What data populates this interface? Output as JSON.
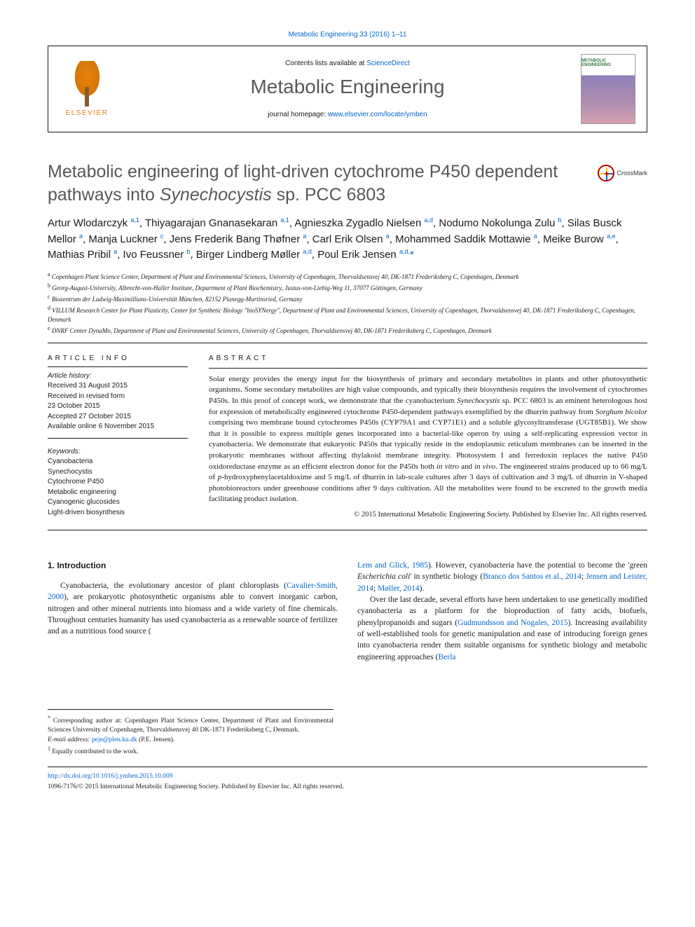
{
  "journal_ref": "Metabolic Engineering 33 (2016) 1–11",
  "header": {
    "contents_prefix": "Contents lists available at ",
    "contents_link": "ScienceDirect",
    "journal_name": "Metabolic Engineering",
    "homepage_prefix": "journal homepage: ",
    "homepage_link": "www.elsevier.com/locate/ymben",
    "publisher": "ELSEVIER",
    "cover_text": "METABOLIC ENGINEERING"
  },
  "crossmark": "CrossMark",
  "title_pre": "Metabolic engineering of light-driven cytochrome P450 dependent pathways into ",
  "title_italic": "Synechocystis",
  "title_post": " sp. PCC 6803",
  "authors_html": "Artur Wlodarczyk <sup>a,1</sup>, Thiyagarajan Gnanasekaran <sup>a,1</sup>, Agnieszka Zygadlo Nielsen <sup>a,d</sup>, Nodumo Nokolunga Zulu <sup>b</sup>, Silas Busck Mellor <sup>a</sup>, Manja Luckner <sup>c</sup>, Jens Frederik Bang Thøfner <sup>a</sup>, Carl Erik Olsen <sup>a</sup>, Mohammed Saddik Mottawie <sup>a</sup>, Meike Burow <sup>a,e</sup>, Mathias Pribil <sup>a</sup>, Ivo Feussner <sup>b</sup>, Birger Lindberg Møller <sup>a,d</sup>, Poul Erik Jensen <sup>a,d,</sup><span class='corr'>*</span>",
  "affiliations": {
    "a": "Copenhagen Plant Science Center, Department of Plant and Environmental Sciences, University of Copenhagen, Thorvaldsensvej 40, DK-1871 Frederiksberg C, Copenhagen, Denmark",
    "b": "Georg-August-University, Albrecht-von-Haller Institute, Department of Plant Biochemistry, Justus-von-Liebig-Weg 11, 37077 Göttingen, Germany",
    "c": "Biozentrum der Ludwig-Maximillians-Universität München, 82152 Planegg-Martinsried, Germany",
    "d": "VILLUM Research Center for Plant Plasticity, Center for Synthetic Biology \"bioSYNergy\", Department of Plant and Environmental Sciences, University of Copenhagen, Thorvaldsensvej 40, DK-1871 Frederiksberg C, Copenhagen, Denmark",
    "e": "DNRF Center DynaMo, Department of Plant and Environmental Sciences, University of Copenhagen, Thorvaldsensvej 40, DK-1871 Frederiksberg C, Copenhagen, Denmark"
  },
  "article_info": {
    "heading": "ARTICLE INFO",
    "history_label": "Article history:",
    "received": "Received 31 August 2015",
    "revised1": "Received in revised form",
    "revised2": "23 October 2015",
    "accepted": "Accepted 27 October 2015",
    "online": "Available online 6 November 2015",
    "keywords_label": "Keywords:",
    "keywords": [
      "Cyanobacteria",
      "Synechocystis",
      "Cytochrome P450",
      "Metabolic engineering",
      "Cyanogenic glucosides",
      "Light-driven biosynthesis"
    ]
  },
  "abstract": {
    "heading": "ABSTRACT",
    "text_pre": "Solar energy provides the energy input for the biosynthesis of primary and secondary metabolites in plants and other photosynthetic organisms. Some secondary metabolites are high value compounds, and typically their biosynthesis requires the involvement of cytochromes P450s. In this proof of concept work, we demonstrate that the cyanobacterium ",
    "text_i1": "Synechocystis",
    "text_mid1": " sp. PCC 6803 is an eminent heterologous host for expression of metabolically engineered cytochrome P450-dependent pathways exemplified by the dhurrin pathway from ",
    "text_i2": "Sorghum bicolor",
    "text_mid2": " comprising two membrane bound cytochromes P450s (CYP79A1 and CYP71E1) and a soluble glycosyltransferase (UGT85B1). We show that it is possible to express multiple genes incorporated into a bacterial-like operon by using a self-replicating expression vector in cyanobacteria. We demonstrate that eukaryotic P450s that typically reside in the endoplasmic reticulum membranes can be inserted in the prokaryotic membranes without affecting thylakoid membrane integrity. Photosystem I and ferredoxin replaces the native P450 oxidoreductase enzyme as an efficient electron donor for the P450s both ",
    "text_i3": "in vitro",
    "text_mid3": " and ",
    "text_i4": "in vivo",
    "text_mid4": ". The engineered strains produced up to 66 mg/L of ",
    "text_i5": "p",
    "text_post": "-hydroxyphenylacetaldoxime and 5 mg/L of dhurrin in lab-scale cultures after 3 days of cultivation and 3 mg/L of dhurrin in V-shaped photobioreactors under greenhouse conditions after 9 days cultivation. All the metabolites were found to be excreted to the growth media facilitating product isolation.",
    "copyright": "© 2015 International Metabolic Engineering Society. Published by Elsevier Inc. All rights reserved."
  },
  "intro": {
    "heading": "1. Introduction",
    "p1_pre": "Cyanobacteria, the evolutionary ancestor of plant chloroplasts (",
    "p1_lnk1": "Cavalier-Smith, 2000",
    "p1_mid": "), are prokaryotic photosynthetic organisms able to convert inorganic carbon, nitrogen and other mineral nutrients into biomass and a wide variety of fine chemicals. Throughout centuries humanity has used cyanobacteria as a renewable source of fertilizer and as a nutritious food source (",
    "p1_lnk2": "Lem and Glick, 1985",
    "p1_mid2": "). However, cyanobacteria have the potential to become the 'green ",
    "p1_i1": "Escherichia coli",
    "p1_mid3": "' in synthetic biology (",
    "p1_lnk3": "Branco dos Santos et al., 2014",
    "p1_sep1": "; ",
    "p1_lnk4": "Jensen and Leister, 2014",
    "p1_sep2": "; ",
    "p1_lnk5": "Møller, 2014",
    "p1_end": ").",
    "p2_pre": "Over the last decade, several efforts have been undertaken to use genetically modified cyanobacteria as a platform for the bioproduction of fatty acids, biofuels, phenylpropanoids and sugars (",
    "p2_lnk1": "Gudmundsson and Nogales, 2015",
    "p2_mid": "). Increasing availability of well-established tools for genetic manipulation and ease of introducing foreign genes into cyanobacteria render them suitable organisms for synthetic biology and metabolic engineering approaches (",
    "p2_lnk2": "Berla"
  },
  "footnotes": {
    "corr_label": "* Corresponding author at: ",
    "corr_text": "Copenhagen Plant Science Center, Department of Plant and Environmental Sciences University of Copenhagen, Thorvaldsensvej 40 DK-1871 Frederiksberg C, Denmark.",
    "email_label": "E-mail address: ",
    "email": "peje@plen.ku.dk",
    "email_who": " (P.E. Jensen).",
    "eq_label": "1",
    "eq_text": " Equally contributed to the work."
  },
  "bottom": {
    "doi": "http://dx.doi.org/10.1016/j.ymben.2015.10.009",
    "issn_line": "1096-7176/© 2015 International Metabolic Engineering Society. Published by Elsevier Inc. All rights reserved."
  },
  "colors": {
    "link": "#0066cc",
    "text": "#1a1a1a",
    "heading_gray": "#585858",
    "elsevier_orange": "#e8830b"
  }
}
